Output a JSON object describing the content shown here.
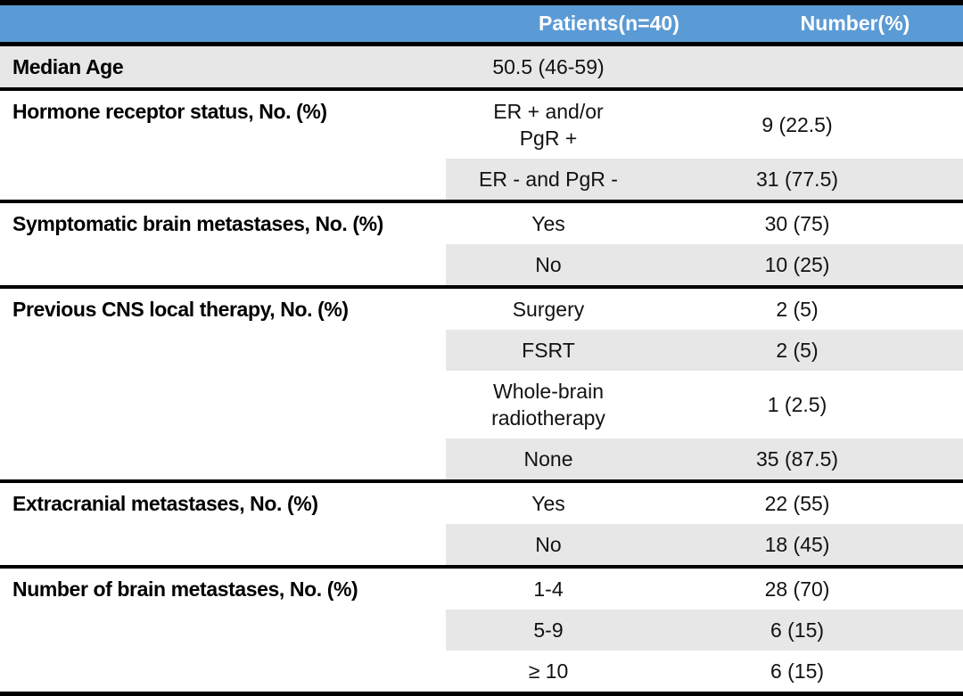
{
  "style": {
    "header_bg": "#5B9BD5",
    "header_text": "#FFFFFF",
    "band_bg": "#E8E7E7",
    "border_color": "#000000"
  },
  "table": {
    "columns": [
      "",
      "Patients(n=40)",
      "Number(%)"
    ],
    "rows": [
      {
        "label": "Median Age",
        "entries": [
          {
            "value": "50.5 (46-59)",
            "number": ""
          }
        ]
      },
      {
        "label": "Hormone receptor status, No. (%)",
        "entries": [
          {
            "value": "ER + and/or\nPgR +",
            "number": "9 (22.5)"
          },
          {
            "value": "ER - and PgR -",
            "number": "31 (77.5)"
          }
        ]
      },
      {
        "label": "Symptomatic brain metastases, No. (%)",
        "entries": [
          {
            "value": "Yes",
            "number": "30 (75)"
          },
          {
            "value": "No",
            "number": "10 (25)"
          }
        ]
      },
      {
        "label": "Previous CNS local therapy, No. (%)",
        "entries": [
          {
            "value": "Surgery",
            "number": "2 (5)"
          },
          {
            "value": "FSRT",
            "number": "2 (5)"
          },
          {
            "value": "Whole-brain\nradiotherapy",
            "number": "1 (2.5)"
          },
          {
            "value": "None",
            "number": "35 (87.5)"
          }
        ]
      },
      {
        "label": "Extracranial metastases, No. (%)",
        "entries": [
          {
            "value": "Yes",
            "number": "22 (55)"
          },
          {
            "value": "No",
            "number": "18 (45)"
          }
        ]
      },
      {
        "label": "Number of brain metastases, No. (%)",
        "entries": [
          {
            "value": "1-4",
            "number": "28 (70)"
          },
          {
            "value": "5-9",
            "number": "6 (15)"
          },
          {
            "value": "≥ 10",
            "number": "6 (15)"
          }
        ]
      }
    ]
  }
}
